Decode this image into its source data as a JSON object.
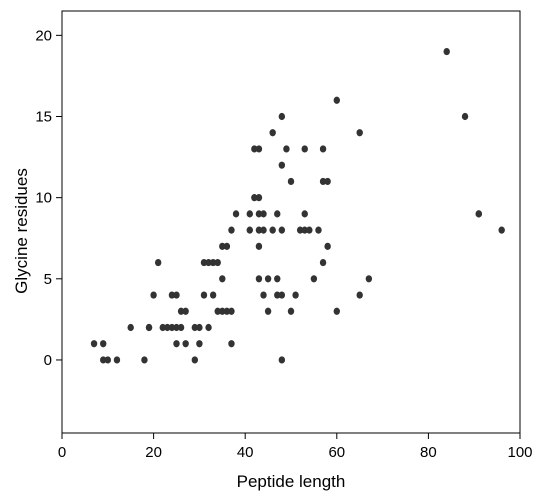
{
  "chart_data": {
    "type": "scatter",
    "title": "",
    "xlabel": "Peptide length",
    "ylabel": "Glycine residues",
    "xlim": [
      0,
      100
    ],
    "ylim": [
      -4.5,
      21.5
    ],
    "xticks": [
      0,
      20,
      40,
      60,
      80,
      100
    ],
    "yticks": [
      0,
      5,
      10,
      15,
      20
    ],
    "grid": false,
    "point_color": "#333333",
    "series": [
      {
        "points": [
          [
            7,
            1
          ],
          [
            9,
            1
          ],
          [
            9,
            0
          ],
          [
            10,
            0
          ],
          [
            12,
            0
          ],
          [
            15,
            2
          ],
          [
            18,
            0
          ],
          [
            19,
            2
          ],
          [
            19,
            2
          ],
          [
            20,
            4
          ],
          [
            21,
            6
          ],
          [
            22,
            2
          ],
          [
            23,
            2
          ],
          [
            24,
            2
          ],
          [
            24,
            4
          ],
          [
            25,
            2
          ],
          [
            25,
            4
          ],
          [
            25,
            1
          ],
          [
            26,
            2
          ],
          [
            26,
            3
          ],
          [
            27,
            3
          ],
          [
            27,
            1
          ],
          [
            29,
            0
          ],
          [
            29,
            2
          ],
          [
            30,
            2
          ],
          [
            30,
            1
          ],
          [
            31,
            4
          ],
          [
            31,
            6
          ],
          [
            32,
            2
          ],
          [
            32,
            6
          ],
          [
            33,
            6
          ],
          [
            33,
            4
          ],
          [
            34,
            6
          ],
          [
            34,
            3
          ],
          [
            35,
            3
          ],
          [
            35,
            5
          ],
          [
            35,
            7
          ],
          [
            36,
            7
          ],
          [
            36,
            3
          ],
          [
            37,
            8
          ],
          [
            37,
            3
          ],
          [
            37,
            1
          ],
          [
            38,
            9
          ],
          [
            41,
            8
          ],
          [
            41,
            9
          ],
          [
            42,
            13
          ],
          [
            42,
            10
          ],
          [
            43,
            13
          ],
          [
            43,
            10
          ],
          [
            43,
            9
          ],
          [
            43,
            8
          ],
          [
            43,
            7
          ],
          [
            43,
            5
          ],
          [
            44,
            9
          ],
          [
            44,
            8
          ],
          [
            44,
            4
          ],
          [
            45,
            5
          ],
          [
            45,
            3
          ],
          [
            46,
            8
          ],
          [
            46,
            14
          ],
          [
            47,
            9
          ],
          [
            47,
            5
          ],
          [
            47,
            4
          ],
          [
            48,
            15
          ],
          [
            48,
            12
          ],
          [
            48,
            8
          ],
          [
            48,
            4
          ],
          [
            48,
            0
          ],
          [
            49,
            13
          ],
          [
            50,
            11
          ],
          [
            50,
            3
          ],
          [
            51,
            4
          ],
          [
            52,
            8
          ],
          [
            53,
            13
          ],
          [
            53,
            9
          ],
          [
            53,
            8
          ],
          [
            54,
            8
          ],
          [
            55,
            5
          ],
          [
            56,
            8
          ],
          [
            57,
            13
          ],
          [
            57,
            6
          ],
          [
            57,
            11
          ],
          [
            58,
            11
          ],
          [
            58,
            7
          ],
          [
            60,
            16
          ],
          [
            60,
            3
          ],
          [
            65,
            14
          ],
          [
            65,
            4
          ],
          [
            67,
            5
          ],
          [
            84,
            19
          ],
          [
            88,
            15
          ],
          [
            91,
            9
          ],
          [
            91,
            9
          ],
          [
            96,
            8
          ]
        ]
      }
    ]
  }
}
